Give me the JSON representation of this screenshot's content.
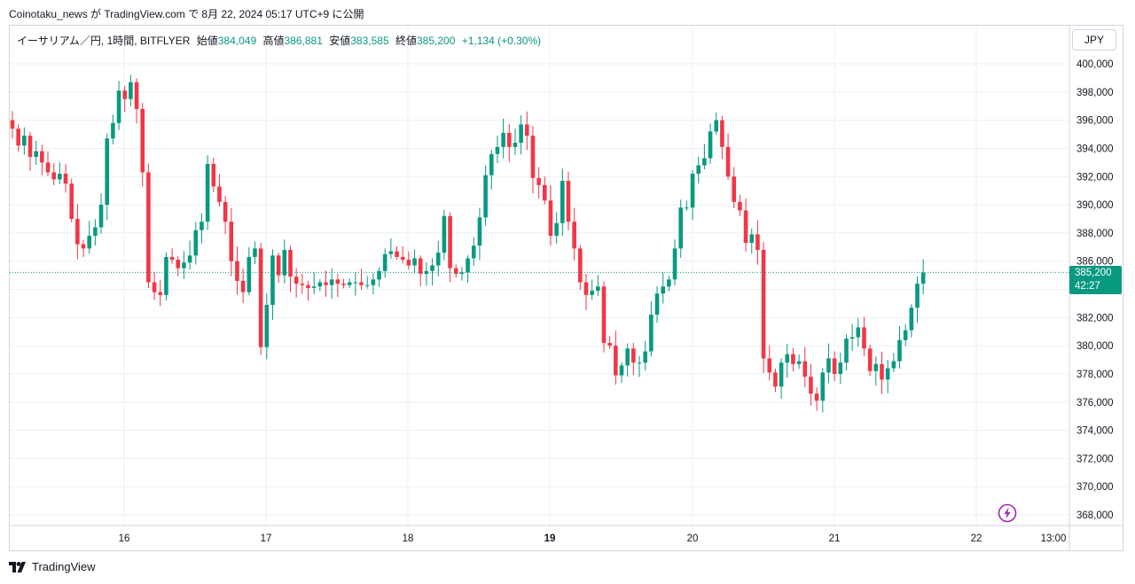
{
  "header": {
    "caption": "Coinotaku_news が TradingView.com で 8月 22, 2024 05:17 UTC+9 に公開"
  },
  "legend": {
    "symbol": "イーサリアム／円, 1時間, BITFLYER",
    "open_label": "始値",
    "open": "384,049",
    "high_label": "高値",
    "high": "386,881",
    "low_label": "安値",
    "low": "383,585",
    "close_label": "終値",
    "close": "385,200",
    "change": "+1,134 (+0.30%)"
  },
  "currency": "JPY",
  "last_price": {
    "price": "385,200",
    "countdown": "42:27"
  },
  "footer": {
    "brand": "TradingView"
  },
  "colors": {
    "up": "#089981",
    "down": "#F23645",
    "grid": "#e9f0f5",
    "text": "#131722",
    "accent": "#9c27b0"
  },
  "icons": {
    "bolt": "lightning-icon",
    "logo": "tradingview-logo-icon"
  },
  "chart_data": {
    "type": "candlestick",
    "symbol": "ETH/JPY",
    "interval": "1h",
    "y_axis": {
      "ticks": [
        368000,
        370000,
        372000,
        374000,
        376000,
        378000,
        380000,
        382000,
        384000,
        386000,
        388000,
        390000,
        392000,
        394000,
        396000,
        398000,
        400000
      ],
      "tick_labels": [
        "368,000",
        "370,000",
        "372,000",
        "374,000",
        "376,000",
        "378,000",
        "380,000",
        "382,000",
        "384,000",
        "386,000",
        "388,000",
        "390,000",
        "392,000",
        "394,000",
        "396,000",
        "398,000",
        "400,000"
      ],
      "range": [
        367000,
        401500
      ]
    },
    "x_axis": {
      "tick_labels": [
        "16",
        "17",
        "18",
        "19",
        "20",
        "21",
        "22",
        "13:00"
      ],
      "bold": [
        "19"
      ]
    },
    "last_close": 385200,
    "approx_closes_hourly": [
      395400,
      394200,
      394900,
      393400,
      393800,
      393000,
      392300,
      391800,
      392200,
      391500,
      389000,
      387200,
      386900,
      387800,
      388400,
      390000,
      394700,
      395800,
      398100,
      397500,
      398700,
      396800,
      392300,
      384500,
      383800,
      383600,
      386300,
      386100,
      385500,
      385900,
      386400,
      388200,
      388800,
      392900,
      391300,
      390200,
      388800,
      386000,
      384600,
      383800,
      386300,
      386900,
      379900,
      382900,
      386400,
      385000,
      386800,
      384900,
      384400,
      384300,
      384100,
      384200,
      384500,
      384300,
      384700,
      384400,
      384300,
      384500,
      384500,
      384300,
      384300,
      384700,
      385300,
      386500,
      386700,
      386300,
      386100,
      385700,
      386200,
      385100,
      385300,
      385700,
      386600,
      389200,
      385500,
      385100,
      385200,
      386200,
      387100,
      389100,
      392100,
      393600,
      394100,
      395100,
      394100,
      394400,
      395700,
      394900,
      391900,
      391400,
      390300,
      387800,
      388700,
      391700,
      388800,
      386900,
      384500,
      383600,
      383900,
      384200,
      380200,
      380000,
      377900,
      378600,
      379800,
      378800,
      378800,
      379600,
      382200,
      383700,
      384200,
      384700,
      386900,
      389800,
      389800,
      392200,
      392800,
      393300,
      395200,
      396000,
      394100,
      392000,
      390200,
      389600,
      387300,
      387900,
      386800,
      379100,
      378100,
      377100,
      378800,
      379400,
      378700,
      378900,
      377800,
      376600,
      376100,
      378100,
      379100,
      378000,
      378800,
      380500,
      380600,
      381300,
      379800,
      378200,
      378700,
      377600,
      378400,
      378900,
      380400,
      381100,
      382700,
      384400,
      385200
    ]
  }
}
